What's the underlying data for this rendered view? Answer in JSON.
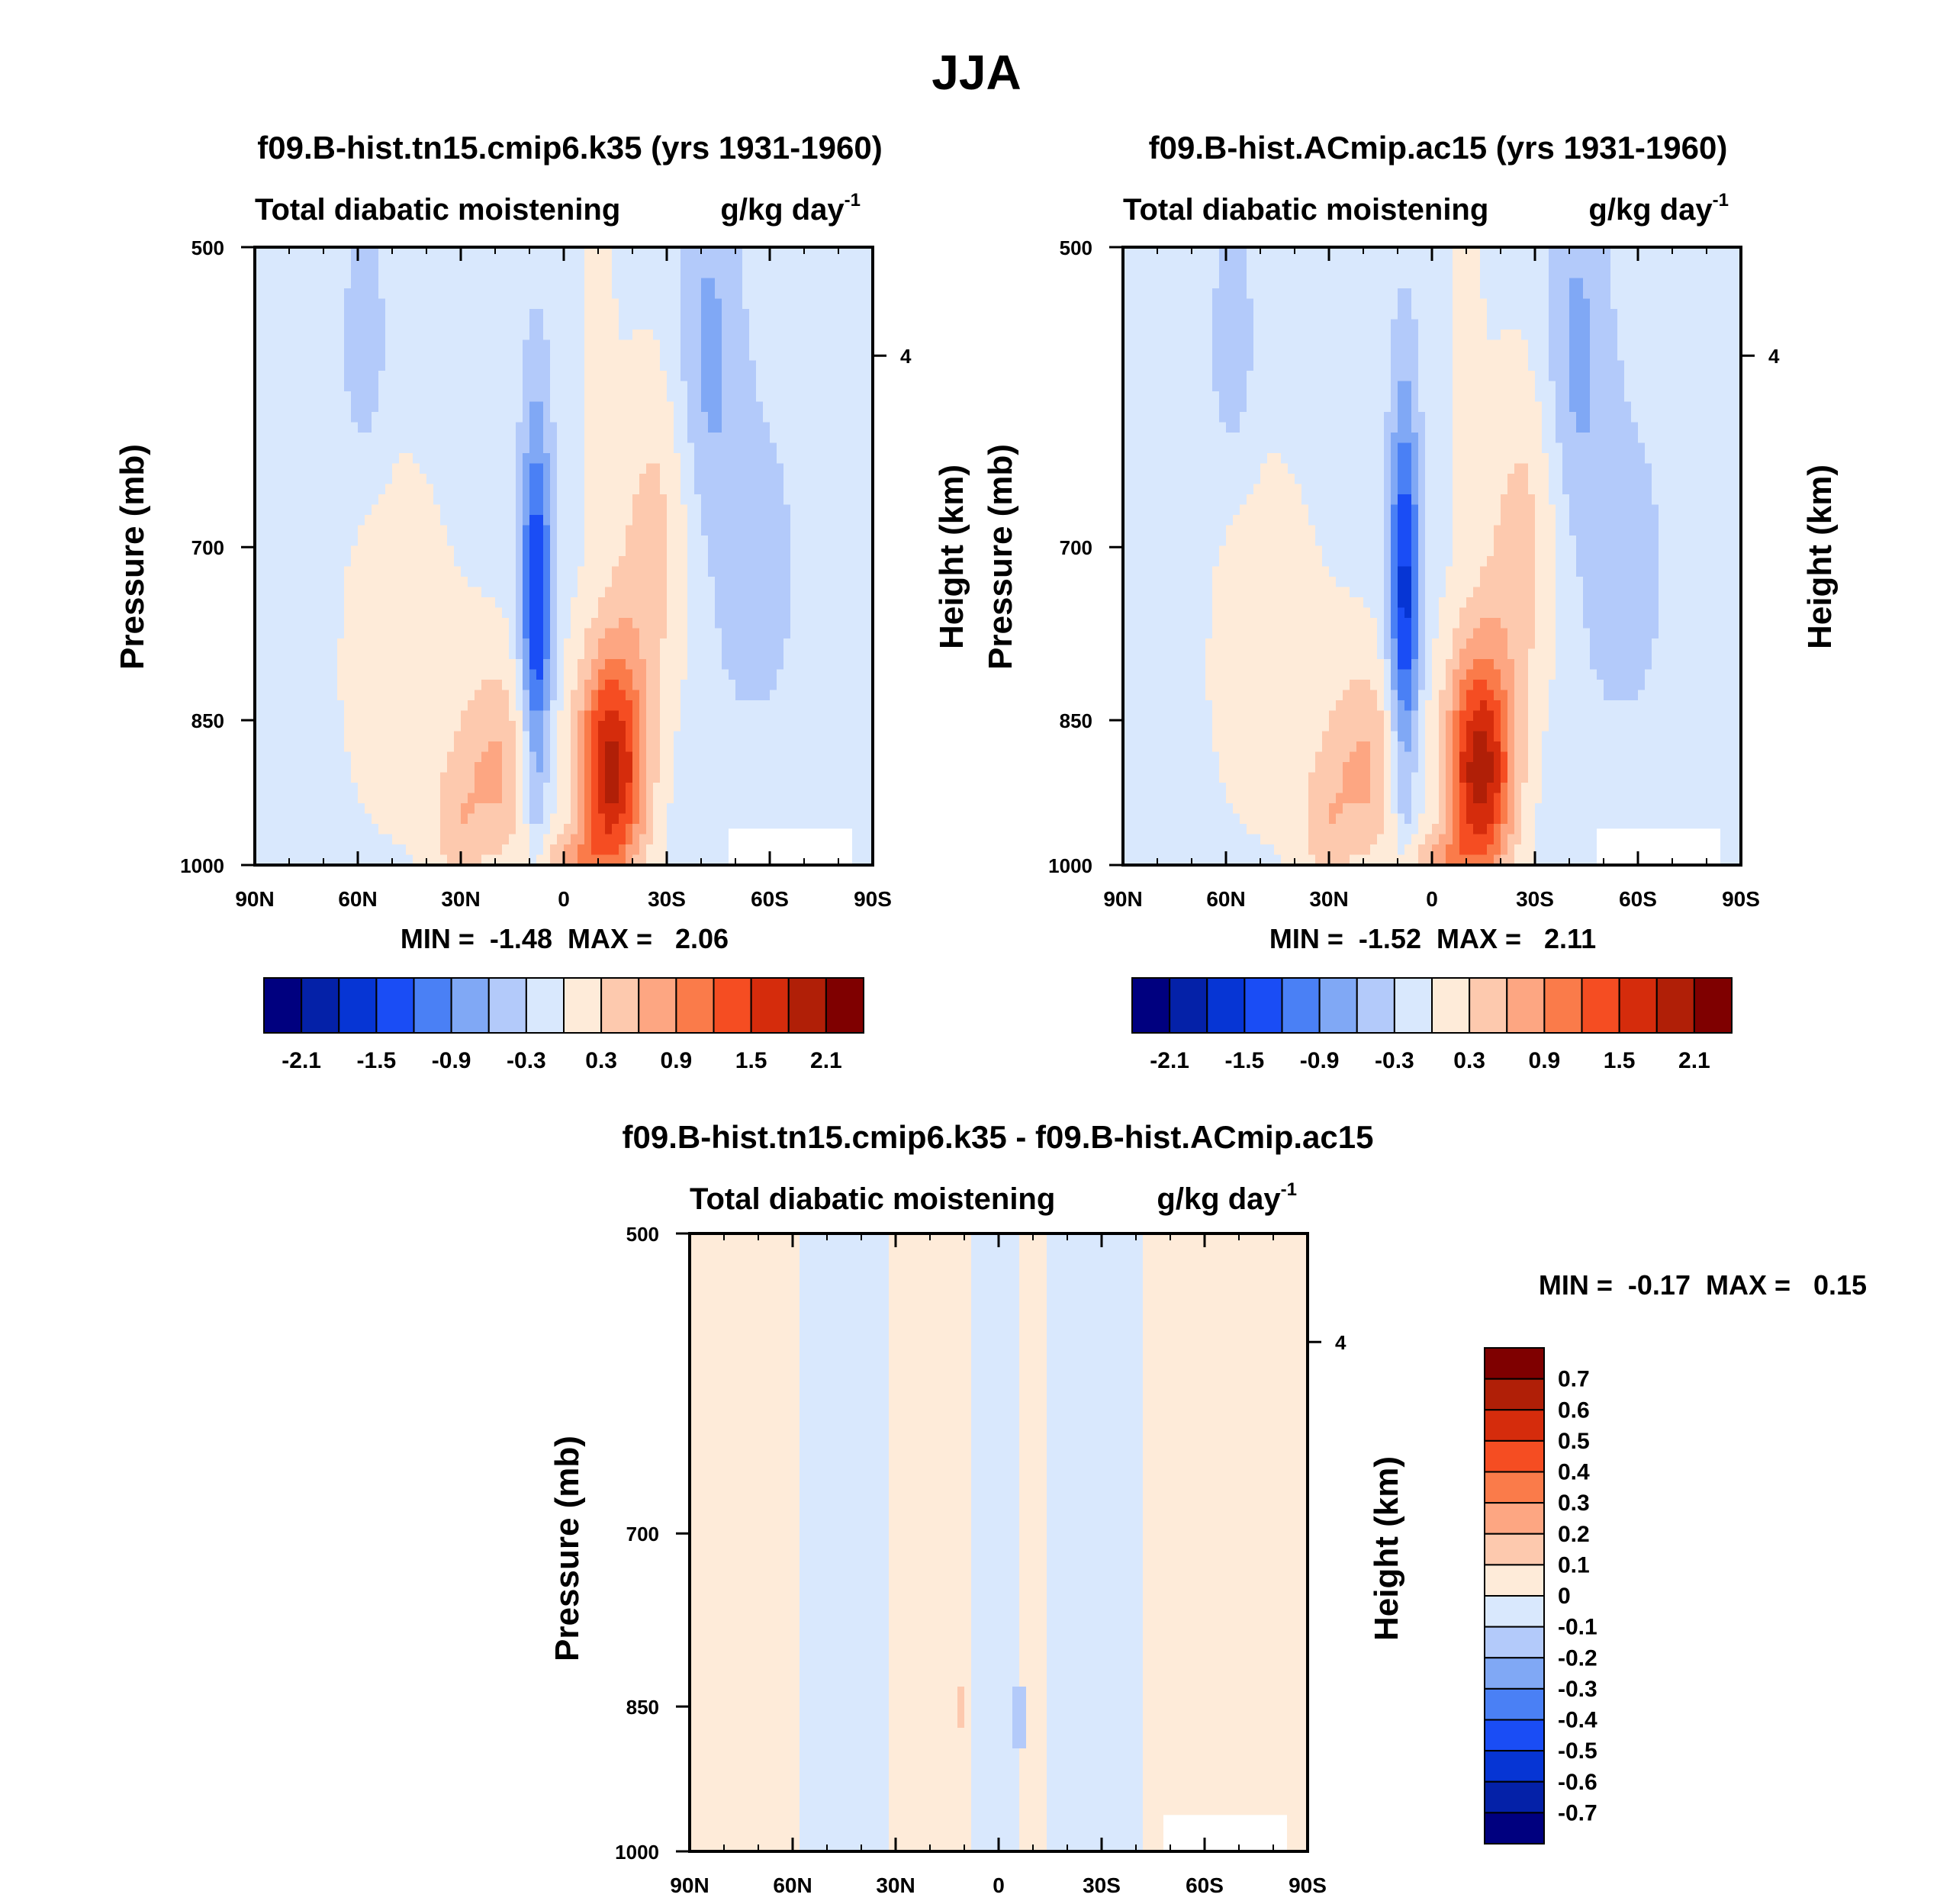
{
  "figure": {
    "title": "JJA"
  },
  "chart_data": [
    {
      "id": "p1",
      "type": "heatmap",
      "title": "f09.B-hist.tn15.cmip6.k35 (yrs 1931-1960)",
      "left_string": "Total diabatic moistening",
      "right_string": "g/kg day",
      "right_string_sup": "-1",
      "ylabel": "Pressure (mb)",
      "ylabel_right": "Height (km)",
      "xlim": [
        -90,
        90
      ],
      "ylim": [
        500,
        1000
      ],
      "x_ticks": [
        "90N",
        "60N",
        "30N",
        "0",
        "30S",
        "60S",
        "90S"
      ],
      "y_ticks": [
        "500",
        "700",
        "850",
        "1000"
      ],
      "right_ticks": [
        "4"
      ],
      "min_max": "MIN =  -1.48  MAX =   2.06",
      "stats": {
        "min": -1.48,
        "max": 2.06
      },
      "colorbar": {
        "orientation": "horizontal",
        "levels": [
          -2.1,
          -1.8,
          -1.5,
          -1.2,
          -0.9,
          -0.6,
          -0.3,
          0,
          0.3,
          0.6,
          0.9,
          1.2,
          1.5,
          1.8,
          2.1
        ],
        "labels": [
          "-2.1",
          "-1.5",
          "-0.9",
          "-0.3",
          "0.3",
          "0.9",
          "1.5",
          "2.1"
        ]
      },
      "features": [
        {
          "x": -8,
          "y": 750,
          "sx": 4.5,
          "sy": 150,
          "amp": -1.48
        },
        {
          "x": -8,
          "y": 930,
          "sx": 3,
          "sy": 60,
          "amp": -0.3
        },
        {
          "x": 14,
          "y": 900,
          "sx": 10,
          "sy": 120,
          "amp": 2.06
        },
        {
          "x": 26,
          "y": 700,
          "sx": 11,
          "sy": 130,
          "amp": 0.55
        },
        {
          "x": -20,
          "y": 900,
          "sx": 12,
          "sy": 110,
          "amp": 0.75
        },
        {
          "x": -32,
          "y": 960,
          "sx": 7,
          "sy": 60,
          "amp": 0.4
        },
        {
          "x": -48,
          "y": 800,
          "sx": 18,
          "sy": 180,
          "amp": 0.3
        },
        {
          "x": -58,
          "y": 560,
          "sx": 6,
          "sy": 70,
          "amp": -0.5
        },
        {
          "x": 42,
          "y": 560,
          "sx": 9,
          "sy": 110,
          "amp": -0.55
        },
        {
          "x": 55,
          "y": 720,
          "sx": 14,
          "sy": 140,
          "amp": -0.35
        },
        {
          "x": 2,
          "y": 990,
          "sx": 9,
          "sy": 25,
          "amp": 0.65
        },
        {
          "x": 10,
          "y": 560,
          "sx": 5,
          "sy": 110,
          "amp": 0.25
        }
      ]
    },
    {
      "id": "p2",
      "type": "heatmap",
      "title": "f09.B-hist.ACmip.ac15 (yrs 1931-1960)",
      "left_string": "Total diabatic moistening",
      "right_string": "g/kg day",
      "right_string_sup": "-1",
      "ylabel": "Pressure (mb)",
      "ylabel_right": "Height (km)",
      "xlim": [
        -90,
        90
      ],
      "ylim": [
        500,
        1000
      ],
      "x_ticks": [
        "90N",
        "60N",
        "30N",
        "0",
        "30S",
        "60S",
        "90S"
      ],
      "y_ticks": [
        "500",
        "700",
        "850",
        "1000"
      ],
      "right_ticks": [
        "4"
      ],
      "min_max": "MIN =  -1.52  MAX =   2.11",
      "stats": {
        "min": -1.52,
        "max": 2.11
      },
      "colorbar": {
        "orientation": "horizontal",
        "levels": [
          -2.1,
          -1.8,
          -1.5,
          -1.2,
          -0.9,
          -0.6,
          -0.3,
          0,
          0.3,
          0.6,
          0.9,
          1.2,
          1.5,
          1.8,
          2.1
        ],
        "labels": [
          "-2.1",
          "-1.5",
          "-0.9",
          "-0.3",
          "0.3",
          "0.9",
          "1.5",
          "2.1"
        ]
      },
      "features": [
        {
          "x": -8,
          "y": 740,
          "sx": 4.5,
          "sy": 150,
          "amp": -1.52
        },
        {
          "x": -8,
          "y": 930,
          "sx": 3,
          "sy": 60,
          "amp": -0.3
        },
        {
          "x": 14,
          "y": 900,
          "sx": 10,
          "sy": 120,
          "amp": 2.11
        },
        {
          "x": 26,
          "y": 700,
          "sx": 11,
          "sy": 130,
          "amp": 0.55
        },
        {
          "x": -20,
          "y": 900,
          "sx": 12,
          "sy": 110,
          "amp": 0.75
        },
        {
          "x": -32,
          "y": 960,
          "sx": 7,
          "sy": 60,
          "amp": 0.4
        },
        {
          "x": -48,
          "y": 800,
          "sx": 18,
          "sy": 180,
          "amp": 0.3
        },
        {
          "x": -58,
          "y": 560,
          "sx": 6,
          "sy": 70,
          "amp": -0.5
        },
        {
          "x": 42,
          "y": 560,
          "sx": 9,
          "sy": 110,
          "amp": -0.55
        },
        {
          "x": 55,
          "y": 720,
          "sx": 14,
          "sy": 140,
          "amp": -0.35
        },
        {
          "x": 2,
          "y": 990,
          "sx": 9,
          "sy": 25,
          "amp": 0.65
        },
        {
          "x": 10,
          "y": 560,
          "sx": 5,
          "sy": 110,
          "amp": 0.25
        }
      ]
    },
    {
      "id": "p3",
      "type": "heatmap",
      "title": "f09.B-hist.tn15.cmip6.k35 - f09.B-hist.ACmip.ac15",
      "left_string": "Total diabatic moistening",
      "right_string": "g/kg day",
      "right_string_sup": "-1",
      "ylabel": "Pressure (mb)",
      "ylabel_right": "Height (km)",
      "xlim": [
        -90,
        90
      ],
      "ylim": [
        500,
        1000
      ],
      "x_ticks": [
        "90N",
        "60N",
        "30N",
        "0",
        "30S",
        "60S",
        "90S"
      ],
      "y_ticks": [
        "500",
        "700",
        "850",
        "1000"
      ],
      "right_ticks": [
        "4"
      ],
      "min_max": "MIN =  -0.17  MAX =   0.15",
      "stats": {
        "min": -0.17,
        "max": 0.15
      },
      "colorbar": {
        "orientation": "vertical",
        "levels": [
          -0.7,
          -0.6,
          -0.5,
          -0.4,
          -0.3,
          -0.2,
          -0.1,
          0,
          0.1,
          0.2,
          0.3,
          0.4,
          0.5,
          0.6,
          0.7
        ],
        "labels": [
          "0.7",
          "0.6",
          "0.5",
          "0.4",
          "0.3",
          "0.2",
          "0.1",
          "0",
          "-0.1",
          "-0.2",
          "-0.3",
          "-0.4",
          "-0.5",
          "-0.6",
          "-0.7"
        ]
      },
      "bands": [
        {
          "x0": -90,
          "x1": -57,
          "value": 0.05
        },
        {
          "x0": -57,
          "x1": -31,
          "value": -0.05
        },
        {
          "x0": -31,
          "x1": -7,
          "value": 0.05
        },
        {
          "x0": -7,
          "x1": 7,
          "value": -0.05
        },
        {
          "x0": 7,
          "x1": 14,
          "value": 0.05
        },
        {
          "x0": 14,
          "x1": 42,
          "value": -0.05
        },
        {
          "x0": 42,
          "x1": 90,
          "value": 0.05
        }
      ],
      "spots": [
        {
          "x": 6,
          "y": 860,
          "sx": 1.5,
          "sy": 55,
          "value": -0.15
        },
        {
          "x": -11,
          "y": 850,
          "sx": 1,
          "sy": 20,
          "value": 0.12
        }
      ]
    }
  ],
  "colors": {
    "palette": [
      "#00007f",
      "#0421a8",
      "#0635d4",
      "#1a4df5",
      "#4a80f5",
      "#80a8f5",
      "#b3cafa",
      "#d9e8fd",
      "#feebd9",
      "#fdc9ae",
      "#fda682",
      "#fa7b4a",
      "#f54d22",
      "#d52c0c",
      "#b01f07",
      "#7f0000"
    ],
    "missing": "#ffffff"
  }
}
